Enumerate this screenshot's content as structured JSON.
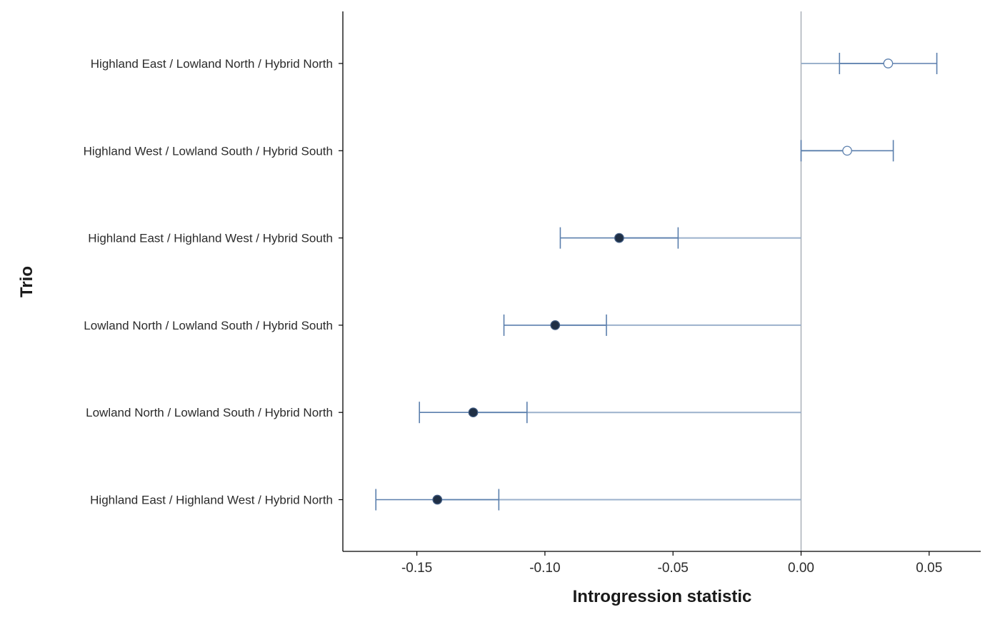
{
  "chart_data": {
    "type": "scatter",
    "subtype": "forest-plot-with-confidence-intervals",
    "xlabel": "Introgression statistic",
    "ylabel": "Trio",
    "xlim": [
      -0.18,
      0.07
    ],
    "x_ticks": [
      -0.15,
      -0.1,
      -0.05,
      0.0,
      0.05
    ],
    "x_tick_labels": [
      "-0.15",
      "-0.10",
      "-0.05",
      "0.00",
      "0.05"
    ],
    "reference_line": 0.0,
    "grid": false,
    "colors": {
      "ci": "#5b7fad",
      "ref_segment": "#9bb1cc",
      "ref_line": "#a9b0b8",
      "filled_point": "#1f2f45",
      "open_point_fill": "#ffffff",
      "axis": "#000000"
    },
    "points": [
      {
        "label": "Highland East / Lowland North / Hybrid North",
        "estimate": 0.034,
        "ci_low": 0.015,
        "ci_high": 0.053,
        "filled": false
      },
      {
        "label": "Highland West / Lowland South / Hybrid South",
        "estimate": 0.018,
        "ci_low": 0.0,
        "ci_high": 0.036,
        "filled": false
      },
      {
        "label": "Highland East / Highland West / Hybrid South",
        "estimate": -0.071,
        "ci_low": -0.094,
        "ci_high": -0.048,
        "filled": true
      },
      {
        "label": "Lowland North / Lowland South / Hybrid South",
        "estimate": -0.096,
        "ci_low": -0.116,
        "ci_high": -0.076,
        "filled": true
      },
      {
        "label": "Lowland North / Lowland South / Hybrid North",
        "estimate": -0.128,
        "ci_low": -0.149,
        "ci_high": -0.107,
        "filled": true
      },
      {
        "label": "Highland East / Highland West / Hybrid North",
        "estimate": -0.142,
        "ci_low": -0.166,
        "ci_high": -0.118,
        "filled": true
      }
    ]
  }
}
